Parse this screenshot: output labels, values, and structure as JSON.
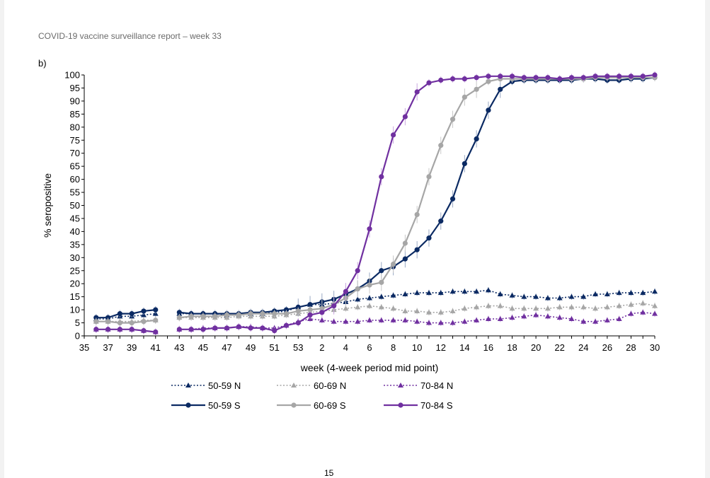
{
  "header": {
    "title": "COVID-19 vaccine surveillance report – week 33"
  },
  "panel": {
    "label": "b)"
  },
  "page_number": "15",
  "chart_data": {
    "type": "line",
    "xlabel": "week (4-week period mid point)",
    "ylabel": "% seropositive",
    "ylim": [
      0,
      100
    ],
    "yticks": [
      0,
      5,
      10,
      15,
      20,
      25,
      30,
      35,
      40,
      45,
      50,
      55,
      60,
      65,
      70,
      75,
      80,
      85,
      90,
      95,
      100
    ],
    "xtick_labels": [
      "35",
      "37",
      "39",
      "41",
      "43",
      "45",
      "47",
      "49",
      "51",
      "53",
      "2",
      "4",
      "6",
      "8",
      "10",
      "12",
      "14",
      "16",
      "18",
      "20",
      "22",
      "24",
      "26",
      "28",
      "30"
    ],
    "x_index_note": "x values are sequential week indices: 0 = week 35 (2020) ... 48 = week 30 (2021)",
    "x": [
      1,
      2,
      3,
      4,
      5,
      6,
      7,
      8,
      9,
      10,
      11,
      12,
      13,
      14,
      15,
      16,
      17,
      18,
      19,
      20,
      21,
      22,
      23,
      24,
      25,
      26,
      27,
      28,
      29,
      30,
      31,
      32,
      33,
      34,
      35,
      36,
      37,
      38,
      39,
      40,
      41,
      42,
      43,
      44,
      45,
      46,
      47,
      48
    ],
    "legend_position": "bottom",
    "series": [
      {
        "name": "50-59 N",
        "color": "#0b2a63",
        "dashed": true,
        "marker": "triangle",
        "values": [
          6.5,
          6.5,
          7.5,
          7.5,
          8,
          8.5,
          null,
          8.5,
          8.5,
          8.5,
          8.5,
          8,
          8,
          8.5,
          8.5,
          9,
          9.5,
          11,
          12,
          12,
          12.5,
          13,
          14,
          14.5,
          15,
          15.5,
          16,
          16.5,
          16.5,
          16.5,
          17,
          17,
          17,
          17.5,
          16,
          15.5,
          15,
          15,
          14.5,
          14.5,
          15,
          15,
          16,
          16,
          16.5,
          16.5,
          16.5,
          17
        ]
      },
      {
        "name": "60-69 N",
        "color": "#a6a6a6",
        "dashed": true,
        "marker": "triangle",
        "values": [
          5.5,
          5.5,
          5.5,
          5.5,
          6,
          6,
          null,
          7,
          7,
          7,
          7,
          7,
          7.5,
          7.5,
          7.5,
          7.5,
          8,
          8.5,
          9,
          9.5,
          10,
          10.5,
          11,
          11.5,
          11,
          10.5,
          9.5,
          9.5,
          9,
          9,
          9.5,
          10.5,
          11,
          11.5,
          11.5,
          10.5,
          10.5,
          10.5,
          10.5,
          11,
          11,
          11,
          10.5,
          11,
          11.5,
          12,
          12.5,
          11.5
        ]
      },
      {
        "name": "70-84 N",
        "color": "#7030a0",
        "dashed": true,
        "marker": "triangle",
        "values": [
          2.5,
          2.5,
          2.5,
          2.5,
          2,
          1.5,
          null,
          2.5,
          2.5,
          3,
          3,
          3,
          3.5,
          3.5,
          3,
          3,
          4,
          5.5,
          6.5,
          6,
          5.5,
          5.5,
          5.5,
          6,
          6,
          6,
          6,
          5.5,
          5,
          5,
          5,
          5.5,
          6,
          6.5,
          6.5,
          7,
          7.5,
          8,
          7.5,
          7,
          6.5,
          5.5,
          5.5,
          6,
          6.5,
          8.5,
          9,
          8.5
        ]
      },
      {
        "name": "50-59 S",
        "color": "#0b2a63",
        "dashed": false,
        "marker": "circle",
        "values": [
          7,
          7,
          8.5,
          8.5,
          9.5,
          10,
          null,
          9,
          8.5,
          8.5,
          8.5,
          8.5,
          8.5,
          9,
          9,
          9.5,
          10,
          11,
          12,
          13,
          14,
          16,
          18,
          21,
          25,
          26.5,
          29.5,
          33,
          37.5,
          44,
          52.5,
          66,
          75.5,
          86.5,
          94.5,
          97.5,
          98,
          98,
          98,
          98,
          98,
          98.5,
          98.5,
          98,
          98,
          98.5,
          98.5,
          99
        ]
      },
      {
        "name": "60-69 S",
        "color": "#a6a6a6",
        "dashed": false,
        "marker": "circle",
        "values": [
          5.5,
          5.5,
          5,
          5,
          5.5,
          6,
          null,
          7,
          7.5,
          7.5,
          7.5,
          8,
          8,
          8.5,
          8.5,
          8.5,
          8.5,
          9.5,
          10,
          10.5,
          12,
          14.5,
          18,
          19.5,
          20.5,
          27.5,
          35.5,
          46.5,
          61,
          73,
          83,
          91.5,
          94.5,
          97.5,
          98.5,
          98.5,
          98.5,
          98.5,
          98.5,
          98.5,
          98.5,
          98.5,
          99,
          99,
          99,
          99,
          99,
          99
        ]
      },
      {
        "name": "70-84 S",
        "color": "#7030a0",
        "dashed": false,
        "marker": "circle",
        "values": [
          2.5,
          2.5,
          2.5,
          2.5,
          2,
          1.5,
          null,
          2.5,
          2.5,
          2.5,
          3,
          3,
          3.5,
          3,
          3,
          2,
          4,
          5,
          8,
          9,
          11.5,
          17,
          25,
          41,
          61,
          77,
          84,
          93.5,
          97,
          98,
          98.5,
          98.5,
          99,
          99.5,
          99.5,
          99.5,
          99,
          99,
          99,
          98.5,
          99,
          99,
          99.5,
          99.5,
          99.5,
          99.5,
          99.5,
          100
        ]
      }
    ]
  }
}
